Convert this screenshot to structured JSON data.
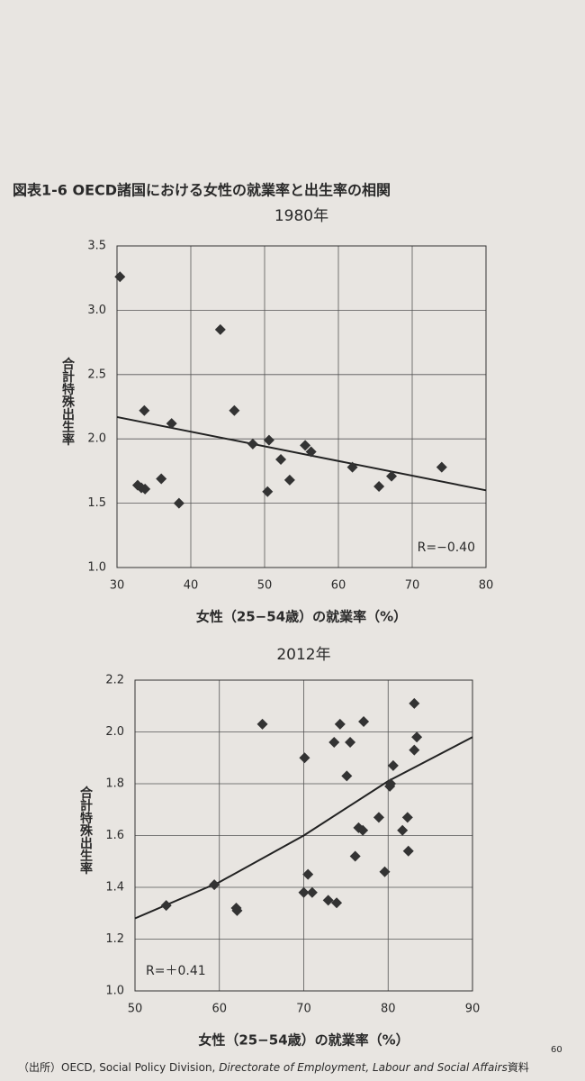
{
  "figure_title": "図表1-6 OECD諸国における女性の就業率と出生率の相関",
  "source_prefix": "（出所）OECD, Social Policy Division, ",
  "source_italic": "Directorate of Employment, Labour and Social Affairs",
  "source_suffix": "資料",
  "page_number": "60",
  "chart_data": [
    {
      "type": "scatter",
      "title": "1980年",
      "x_label": "女性（25−54歳）の就業率（%）",
      "y_label": "合計特殊出生率",
      "annotation": "R=−0.40",
      "annotation_corner": "lower right",
      "color": "#333333",
      "grid": true,
      "xlim": [
        30,
        80
      ],
      "xticks": [
        30,
        40,
        50,
        60,
        70,
        80
      ],
      "ylim": [
        1.0,
        3.5
      ],
      "yticks": [
        {
          "value": 1.0,
          "label": "1.0"
        },
        1.5,
        {
          "value": 2.0,
          "label": "2.0"
        },
        2.5,
        {
          "value": 3.0,
          "label": "3.0"
        },
        3.5
      ],
      "x": [
        30.4,
        44.0,
        33.7,
        45.9,
        37.4,
        48.4,
        50.6,
        52.2,
        55.5,
        56.3,
        61.9,
        67.2,
        74.0,
        32.8,
        33.3,
        33.8,
        36.0,
        38.4,
        50.4,
        53.4,
        65.5
      ],
      "values": [
        3.26,
        2.85,
        2.22,
        2.22,
        2.12,
        1.96,
        1.99,
        1.84,
        1.95,
        1.9,
        1.78,
        1.71,
        1.78,
        1.64,
        1.62,
        1.61,
        1.69,
        1.5,
        1.59,
        1.68,
        1.63
      ],
      "trend": {
        "x": [
          30,
          80
        ],
        "values": [
          2.17,
          1.6
        ]
      }
    },
    {
      "type": "scatter",
      "title": "2012年",
      "x_label": "女性（25−54歳）の就業率（%）",
      "y_label": "合計特殊出生率",
      "annotation": "R=＋0.41",
      "annotation_corner": "lower left",
      "color": "#333333",
      "grid": true,
      "xlim": [
        50,
        90
      ],
      "xticks": [
        50,
        60,
        70,
        80,
        90
      ],
      "ylim": [
        1.0,
        2.2
      ],
      "yticks": [
        {
          "value": 1.0,
          "label": "1.0"
        },
        1.2,
        1.4,
        1.6,
        1.8,
        {
          "value": 2.0,
          "label": "2.0"
        },
        2.2
      ],
      "x": [
        53.7,
        59.4,
        62.0,
        62.1,
        65.1,
        70.1,
        70.5,
        70.0,
        71.0,
        72.9,
        73.9,
        73.6,
        74.3,
        75.5,
        75.1,
        77.1,
        76.1,
        76.5,
        77.0,
        78.9,
        79.6,
        80.2,
        80.6,
        80.3,
        81.7,
        82.3,
        82.4,
        83.1,
        83.4,
        83.1
      ],
      "values": [
        1.33,
        1.41,
        1.32,
        1.31,
        2.03,
        1.9,
        1.45,
        1.38,
        1.38,
        1.35,
        1.34,
        1.96,
        2.03,
        1.96,
        1.83,
        2.04,
        1.52,
        1.63,
        1.62,
        1.67,
        1.46,
        1.79,
        1.87,
        1.8,
        1.62,
        1.67,
        1.54,
        2.11,
        1.98,
        1.93
      ],
      "trend": {
        "x": [
          50,
          60,
          70,
          80,
          90
        ],
        "values": [
          1.28,
          1.42,
          1.6,
          1.81,
          1.98
        ]
      }
    }
  ]
}
